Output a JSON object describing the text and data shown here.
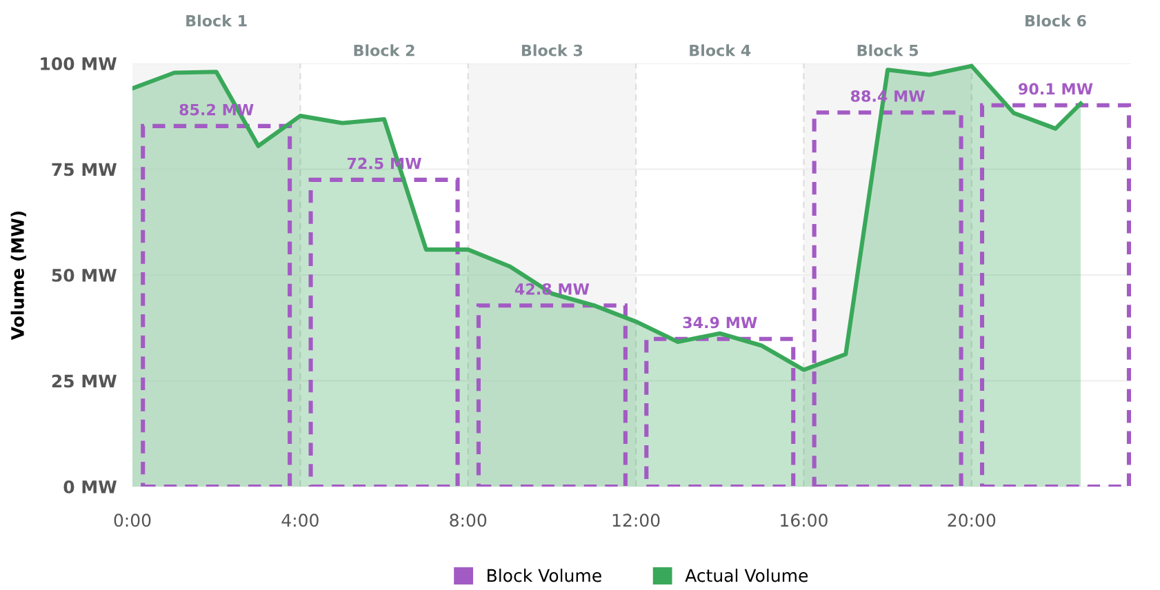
{
  "chart_data": {
    "type": "area",
    "ylabel": "Volume (MW)",
    "xlim": [
      0,
      23.8
    ],
    "ylim": [
      0,
      100
    ],
    "xticks": [
      {
        "value": 0,
        "label": "0:00"
      },
      {
        "value": 4,
        "label": "4:00"
      },
      {
        "value": 8,
        "label": "8:00"
      },
      {
        "value": 12,
        "label": "12:00"
      },
      {
        "value": 16,
        "label": "16:00"
      },
      {
        "value": 20,
        "label": "20:00"
      }
    ],
    "yticks": [
      {
        "value": 0,
        "label": "0 MW"
      },
      {
        "value": 25,
        "label": "25 MW"
      },
      {
        "value": 50,
        "label": "50 MW"
      },
      {
        "value": 75,
        "label": "75 MW"
      },
      {
        "value": 100,
        "label": "100 MW"
      }
    ],
    "grid": true,
    "legend": "bottom",
    "annotations": [
      "Block 1",
      "Block 2",
      "Block 3",
      "Block 4",
      "Block 5",
      "Block 6"
    ],
    "bands": [
      {
        "axis": "x",
        "from": 0,
        "to": 4,
        "color": "#f5f5f5"
      },
      {
        "axis": "x",
        "from": 8,
        "to": 12,
        "color": "#f5f5f5"
      },
      {
        "axis": "x",
        "from": 16,
        "to": 20,
        "color": "#f5f5f5"
      }
    ],
    "series": [
      {
        "name": "Block Volume",
        "type": "bar",
        "color": "#a35bc4",
        "line_style": "dashed",
        "x": [
          2,
          6,
          10,
          14,
          18,
          22
        ],
        "values": [
          85.2,
          72.5,
          42.8,
          34.9,
          88.4,
          90.1
        ],
        "value_labels": [
          "85.2 MW",
          "72.5 MW",
          "42.8 MW",
          "34.9 MW",
          "88.4 MW",
          "90.1 MW"
        ]
      },
      {
        "name": "Actual Volume",
        "color": "#3aa85a",
        "x": [
          0,
          1,
          2,
          3,
          4,
          5,
          6,
          7,
          8,
          9,
          10,
          11,
          12,
          13,
          14,
          15,
          16,
          17,
          18,
          19,
          20,
          21,
          22,
          22.6
        ],
        "values": [
          94.1,
          97.8,
          98,
          80.5,
          87.6,
          85.9,
          86.8,
          56,
          56,
          52,
          45.6,
          42.8,
          39,
          34.2,
          36.2,
          33.3,
          27.6,
          31.3,
          98.5,
          97.3,
          99.4,
          88.3,
          84.6,
          90.5
        ]
      }
    ]
  }
}
